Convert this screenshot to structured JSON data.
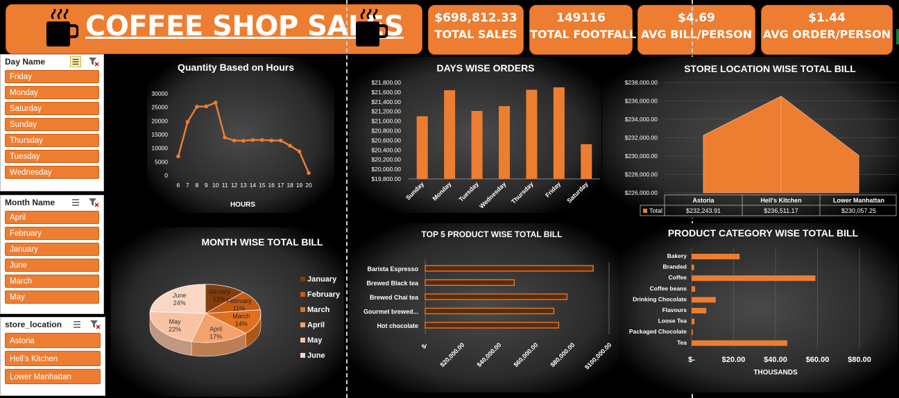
{
  "header": {
    "title": "COFFEE SHOP SALES",
    "cup_icon": "coffee-cup-icon"
  },
  "kpis": [
    {
      "value": "$698,812.33",
      "label": "TOTAL SALES"
    },
    {
      "value": "149116",
      "label": "TOTAL FOOTFALL"
    },
    {
      "value": "$4.69",
      "label": "AVG BILL/PERSON"
    },
    {
      "value": "$1.44",
      "label": "AVG ORDER/PERSON"
    }
  ],
  "slicers": {
    "day": {
      "title": "Day Name",
      "items": [
        "Friday",
        "Monday",
        "Saturday",
        "Sunday",
        "Thursday",
        "Tuesday",
        "Wednesday"
      ]
    },
    "month": {
      "title": "Month Name",
      "items": [
        "April",
        "February",
        "January",
        "June",
        "March",
        "May"
      ]
    },
    "store": {
      "title": "store_location",
      "items": [
        "Astoria",
        "Hell's Kitchen",
        "Lower Manhattan"
      ]
    }
  },
  "colors": {
    "accent": "#ED7D31",
    "bg": "#000000",
    "panel": "#3a3a3a",
    "pie": [
      "#843C0C",
      "#C55A11",
      "#E0701F",
      "#F4A26C",
      "#F8C3A4",
      "#FAD7C5"
    ]
  },
  "chart_data": [
    {
      "id": "hours",
      "type": "line",
      "title": "Quantity Based on Hours",
      "xlabel": "HOURS",
      "ylabel": "",
      "x": [
        6,
        7,
        8,
        9,
        10,
        11,
        12,
        13,
        14,
        15,
        16,
        17,
        18,
        19,
        20
      ],
      "values": [
        7000,
        19600,
        25200,
        25300,
        26700,
        13900,
        12800,
        12700,
        13000,
        13000,
        12800,
        12800,
        10900,
        8800,
        900
      ],
      "ylim": [
        0,
        30000
      ],
      "yticks": [
        0,
        5000,
        10000,
        15000,
        20000,
        25000,
        30000
      ],
      "grid": false
    },
    {
      "id": "days",
      "type": "bar",
      "title": "DAYS WISE ORDERS",
      "categories": [
        "Sunday",
        "Monday",
        "Tuesday",
        "Wednesday",
        "Thursday",
        "Friday",
        "Saturday"
      ],
      "values": [
        21100,
        21640,
        21210,
        21310,
        21650,
        21700,
        20520
      ],
      "ylim": [
        19800,
        21800
      ],
      "yticks": [
        "$19,800.00",
        "$20,000.00",
        "$20,200.00",
        "$20,400.00",
        "$20,600.00",
        "$20,800.00",
        "$21,000.00",
        "$21,200.00",
        "$21,400.00",
        "$21,600.00",
        "$21,800.00"
      ],
      "grid": false
    },
    {
      "id": "store",
      "type": "area",
      "title": "STORE LOCATION WISE TOTAL BILL",
      "categories": [
        "Astoria",
        "Hell's Kitchen",
        "Lower Manhattan"
      ],
      "series": [
        {
          "name": "Total",
          "values": [
            232243.91,
            236511.17,
            230057.25
          ]
        }
      ],
      "table_values": [
        "$232,243.91",
        "$236,511.17",
        "$230,057.25"
      ],
      "ylim": [
        226000,
        238000
      ],
      "yticks": [
        "$226,000.00",
        "$228,000.00",
        "$230,000.00",
        "$232,000.00",
        "$234,000.00",
        "$236,000.00",
        "$238,000.00"
      ],
      "grid": true
    },
    {
      "id": "month",
      "type": "pie",
      "title": "MONTH WISE TOTAL BILL",
      "categories": [
        "January",
        "February",
        "March",
        "April",
        "May",
        "June"
      ],
      "values": [
        12,
        11,
        14,
        17,
        22,
        24
      ],
      "labels": [
        "12%",
        "11%",
        "14%",
        "17%",
        "22%",
        "24%"
      ],
      "legend": "right"
    },
    {
      "id": "products",
      "type": "bar",
      "orientation": "horizontal",
      "title": "TOP 5 PRODUCT  WISE TOTAL BILL",
      "categories": [
        "Barista Espresso",
        "Brewed Black tea",
        "Brewed Chai tea",
        "Gourmet brewed...",
        "Hot chocolate"
      ],
      "values": [
        91400,
        48400,
        77100,
        70000,
        72600
      ],
      "xlim": [
        0,
        100000
      ],
      "xticks": [
        "$-",
        "$20,000.00",
        "$40,000.00",
        "$60,000.00",
        "$80,000.00",
        "$100,000.00"
      ]
    },
    {
      "id": "category",
      "type": "bar",
      "orientation": "horizontal",
      "title": "PRODUCT CATEGORY WISE TOTAL BILL",
      "categories": [
        "Bakery",
        "Branded",
        "Coffee",
        "Coffee beans",
        "Drinking Chocolate",
        "Flavours",
        "Loose Tea",
        "Packaged Chocolate",
        "Tea"
      ],
      "values": [
        22.9,
        1.2,
        59.0,
        1.7,
        11.5,
        7.0,
        1.4,
        0.6,
        45.6
      ],
      "xlim": [
        0,
        90
      ],
      "xticks": [
        "$-",
        "$20.00",
        "$40.00",
        "$60.00",
        "$80.00"
      ],
      "xlabel": "THOUSANDS",
      "grid": true
    }
  ]
}
